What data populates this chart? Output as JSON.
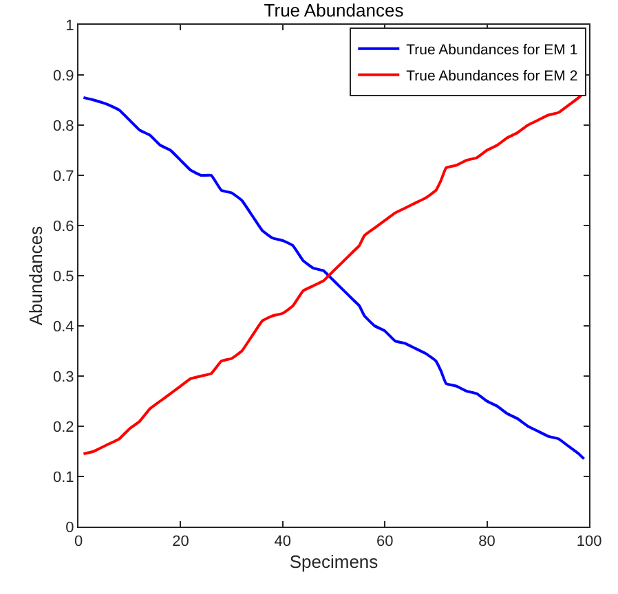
{
  "chart_data": {
    "type": "line",
    "title": "True Abundances",
    "xlabel": "Specimens",
    "ylabel": "Abundances",
    "x": [
      1,
      3,
      6,
      8,
      10,
      12,
      14,
      16,
      18,
      20,
      22,
      24,
      26,
      28,
      30,
      32,
      34,
      36,
      38,
      40,
      42,
      44,
      46,
      48,
      49,
      50,
      52,
      54,
      55,
      56,
      58,
      60,
      62,
      64,
      66,
      68,
      70,
      71,
      72,
      74,
      76,
      78,
      80,
      82,
      84,
      86,
      88,
      90,
      92,
      94,
      96,
      98,
      99
    ],
    "series": [
      {
        "name": "True Abundances for EM 1",
        "color": "#0000ff",
        "values": [
          0.855,
          0.85,
          0.84,
          0.83,
          0.81,
          0.79,
          0.78,
          0.76,
          0.75,
          0.73,
          0.71,
          0.7,
          0.7,
          0.67,
          0.665,
          0.65,
          0.62,
          0.59,
          0.575,
          0.57,
          0.56,
          0.53,
          0.515,
          0.51,
          0.5,
          0.49,
          0.47,
          0.45,
          0.44,
          0.42,
          0.4,
          0.39,
          0.37,
          0.365,
          0.355,
          0.345,
          0.33,
          0.31,
          0.285,
          0.28,
          0.27,
          0.265,
          0.25,
          0.24,
          0.225,
          0.215,
          0.2,
          0.19,
          0.18,
          0.175,
          0.16,
          0.145,
          0.135
        ]
      },
      {
        "name": "True Abundances for EM 2",
        "color": "#ff0000",
        "values": [
          0.145,
          0.15,
          0.165,
          0.175,
          0.195,
          0.21,
          0.235,
          0.25,
          0.265,
          0.28,
          0.295,
          0.3,
          0.305,
          0.33,
          0.335,
          0.35,
          0.38,
          0.41,
          0.42,
          0.425,
          0.44,
          0.47,
          0.48,
          0.49,
          0.5,
          0.51,
          0.53,
          0.55,
          0.56,
          0.58,
          0.595,
          0.61,
          0.625,
          0.635,
          0.645,
          0.655,
          0.67,
          0.69,
          0.715,
          0.72,
          0.73,
          0.735,
          0.75,
          0.76,
          0.775,
          0.785,
          0.8,
          0.81,
          0.82,
          0.825,
          0.84,
          0.855,
          0.865
        ]
      }
    ],
    "xlim": [
      0,
      100
    ],
    "xticks": [
      0,
      20,
      40,
      60,
      80,
      100
    ],
    "ylim": [
      0,
      1
    ],
    "yticks": [
      0,
      0.1,
      0.2,
      0.3,
      0.4,
      0.5,
      0.6,
      0.7,
      0.8,
      0.9,
      1
    ],
    "legend": "top right",
    "marker": "none",
    "line_style": "solid"
  }
}
